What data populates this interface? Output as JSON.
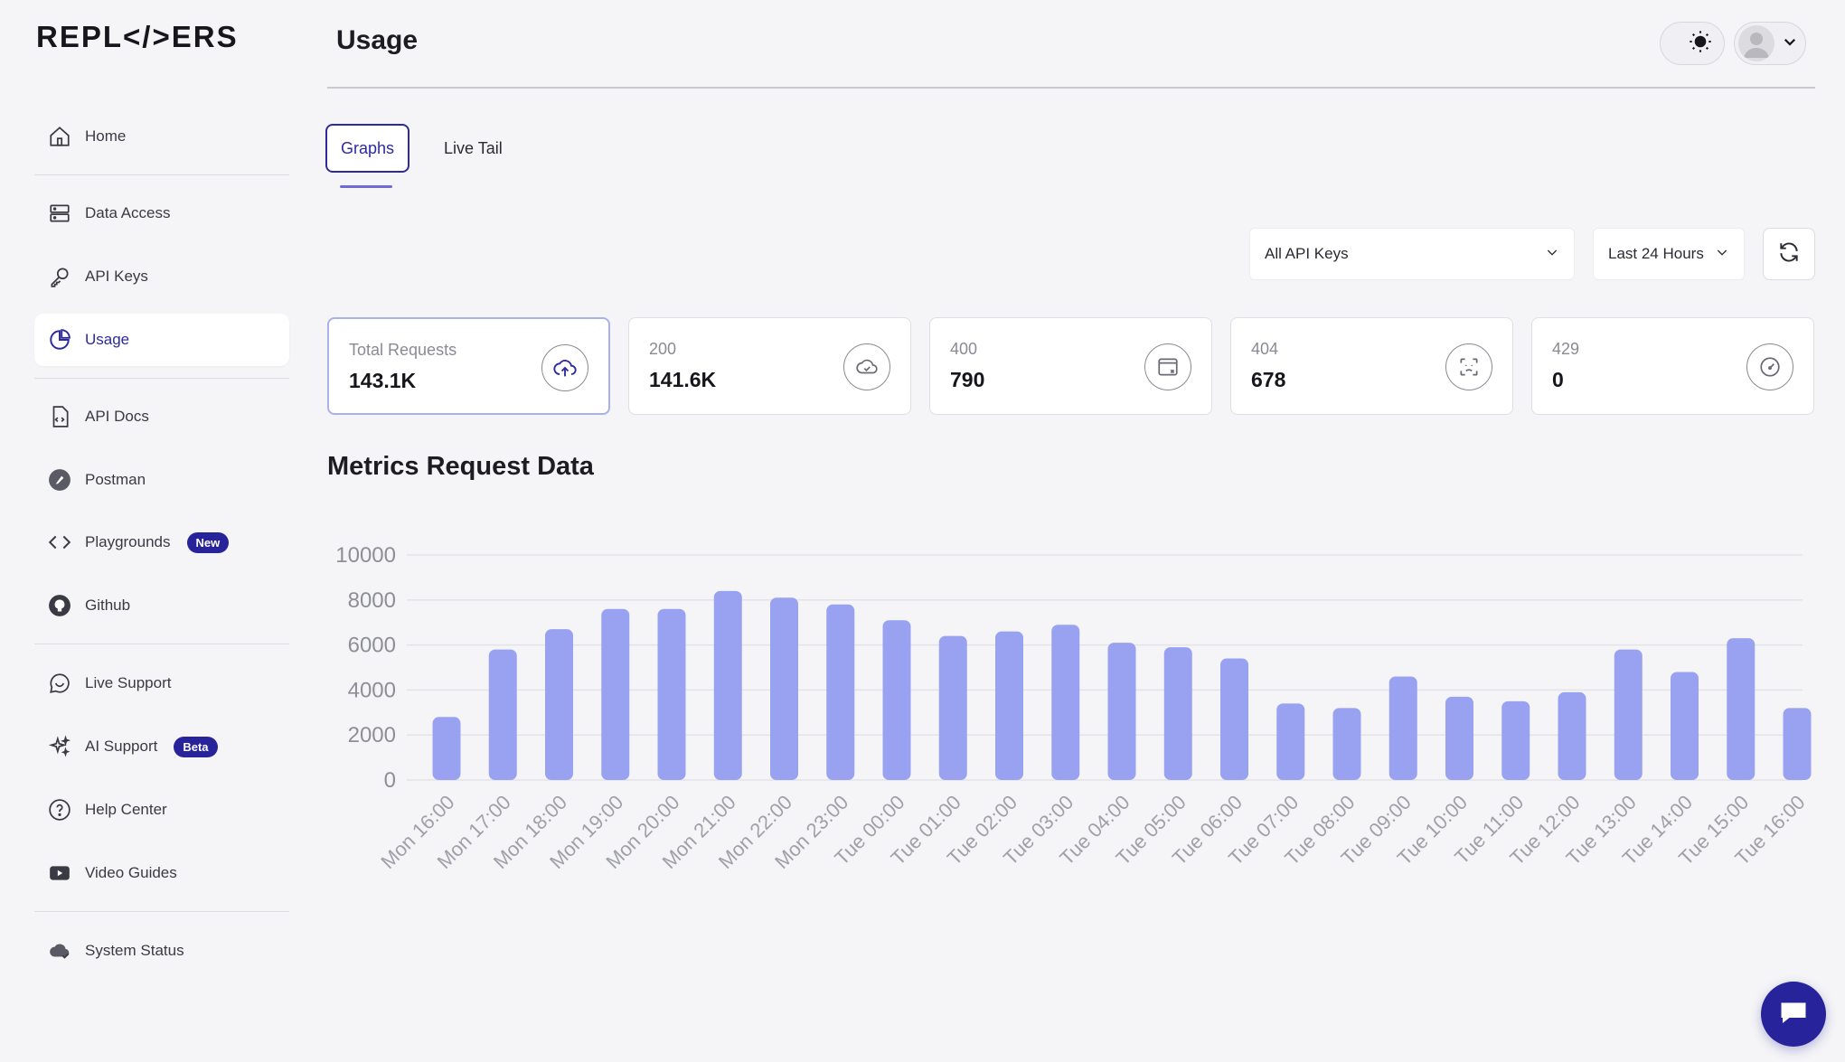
{
  "brand": {
    "logo_text": "REPL</>ERS"
  },
  "sidebar": {
    "items": [
      {
        "label": "Home",
        "icon": "home-icon"
      },
      {
        "label": "Data Access",
        "icon": "server-icon"
      },
      {
        "label": "API Keys",
        "icon": "key-icon"
      },
      {
        "label": "Usage",
        "icon": "pie-chart-icon",
        "active": true
      },
      {
        "label": "API Docs",
        "icon": "document-code-icon"
      },
      {
        "label": "Postman",
        "icon": "postman-icon"
      },
      {
        "label": "Playgrounds",
        "icon": "code-icon",
        "badge": "New"
      },
      {
        "label": "Github",
        "icon": "github-icon"
      },
      {
        "label": "Live Support",
        "icon": "chat-icon"
      },
      {
        "label": "AI Support",
        "icon": "sparkle-icon",
        "badge": "Beta"
      },
      {
        "label": "Help Center",
        "icon": "help-circle-icon"
      },
      {
        "label": "Video Guides",
        "icon": "video-icon"
      },
      {
        "label": "System Status",
        "icon": "cloud-check-icon"
      }
    ]
  },
  "header": {
    "title": "Usage"
  },
  "tabs": [
    {
      "label": "Graphs",
      "active": true
    },
    {
      "label": "Live Tail",
      "active": false
    }
  ],
  "filters": {
    "api_keys": "All API Keys",
    "time_range": "Last 24 Hours"
  },
  "stats": [
    {
      "label": "Total Requests",
      "value": "143.1K",
      "icon": "cloud-upload-icon"
    },
    {
      "label": "200",
      "value": "141.6K",
      "icon": "cloud-check-icon"
    },
    {
      "label": "400",
      "value": "790",
      "icon": "window-error-icon"
    },
    {
      "label": "404",
      "value": "678",
      "icon": "scan-face-icon"
    },
    {
      "label": "429",
      "value": "0",
      "icon": "speedometer-icon"
    }
  ],
  "chart_title": "Metrics Request Data",
  "chart_data": {
    "type": "bar",
    "title": "Metrics Request Data",
    "xlabel": "",
    "ylabel": "",
    "ylim": [
      0,
      10000
    ],
    "yticks": [
      0,
      2000,
      4000,
      6000,
      8000,
      10000
    ],
    "categories": [
      "Mon 16:00",
      "Mon 17:00",
      "Mon 18:00",
      "Mon 19:00",
      "Mon 20:00",
      "Mon 21:00",
      "Mon 22:00",
      "Mon 23:00",
      "Tue 00:00",
      "Tue 01:00",
      "Tue 02:00",
      "Tue 03:00",
      "Tue 04:00",
      "Tue 05:00",
      "Tue 06:00",
      "Tue 07:00",
      "Tue 08:00",
      "Tue 09:00",
      "Tue 10:00",
      "Tue 11:00",
      "Tue 12:00",
      "Tue 13:00",
      "Tue 14:00",
      "Tue 15:00",
      "Tue 16:00"
    ],
    "values": [
      2800,
      5800,
      6700,
      7600,
      7600,
      8400,
      8100,
      7800,
      7100,
      6400,
      6600,
      6900,
      6100,
      5900,
      5400,
      3400,
      3200,
      4600,
      3700,
      3500,
      3900,
      5800,
      4800,
      6300,
      3200
    ],
    "bar_color": "#98a2f0",
    "grid": true
  },
  "colors": {
    "accent": "#27239a",
    "bar": "#98a2f0"
  }
}
